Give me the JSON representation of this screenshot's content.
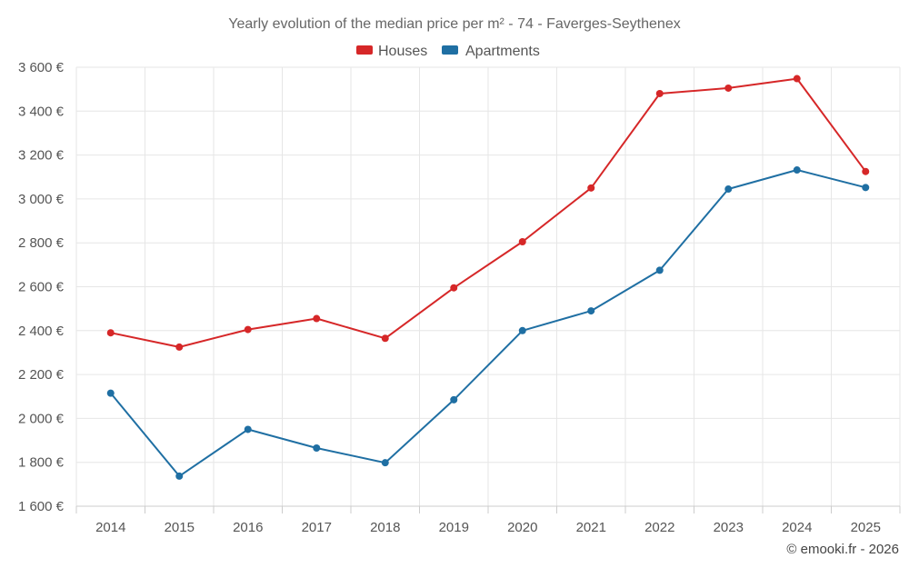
{
  "chart_data": {
    "type": "line",
    "title": "Yearly evolution of the median price per m² - 74 - Faverges-Seythenex",
    "xlabel": "",
    "ylabel": "",
    "categories": [
      "2014",
      "2015",
      "2016",
      "2017",
      "2018",
      "2019",
      "2020",
      "2021",
      "2022",
      "2023",
      "2024",
      "2025"
    ],
    "ylim": [
      1600,
      3600
    ],
    "yticks": [
      1600,
      1800,
      2000,
      2200,
      2400,
      2600,
      2800,
      3000,
      3200,
      3400,
      3600
    ],
    "ytick_labels": [
      "1 600 €",
      "1 800 €",
      "2 000 €",
      "2 200 €",
      "2 400 €",
      "2 600 €",
      "2 800 €",
      "3 000 €",
      "3 200 €",
      "3 400 €",
      "3 600 €"
    ],
    "grid": true,
    "legend_position": "top-center",
    "series": [
      {
        "name": "Houses",
        "color": "#d62728",
        "values": [
          2390,
          2325,
          2405,
          2455,
          2365,
          2595,
          2805,
          3050,
          3480,
          3505,
          3548,
          3125
        ]
      },
      {
        "name": "Apartments",
        "color": "#1f6fa3",
        "values": [
          2115,
          1737,
          1950,
          1865,
          1798,
          2085,
          2400,
          2490,
          2675,
          3045,
          3132,
          3052
        ]
      }
    ]
  },
  "credit": "© emooki.fr - 2026"
}
